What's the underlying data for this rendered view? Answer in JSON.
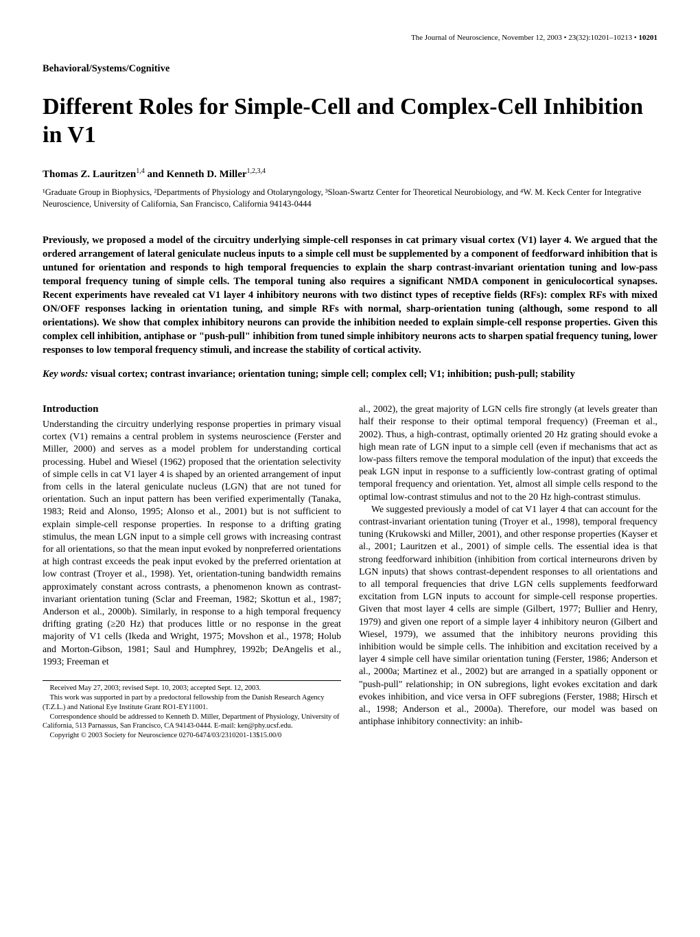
{
  "header": {
    "journal": "The Journal of Neuroscience,",
    "date": "November 12, 2003",
    "volume": "23(32):10201–10213",
    "page": "10201",
    "bullet": "•"
  },
  "section_label": "Behavioral/Systems/Cognitive",
  "title": "Different Roles for Simple-Cell and Complex-Cell Inhibition in V1",
  "authors": "Thomas Z. Lauritzen",
  "authors_sup1": "1,4",
  "authors_and": " and Kenneth D. Miller",
  "authors_sup2": "1,2,3,4",
  "affiliations": "¹Graduate Group in Biophysics, ²Departments of Physiology and Otolaryngology, ³Sloan-Swartz Center for Theoretical Neurobiology, and ⁴W. M. Keck Center for Integrative Neuroscience, University of California, San Francisco, California 94143-0444",
  "abstract": "Previously, we proposed a model of the circuitry underlying simple-cell responses in cat primary visual cortex (V1) layer 4. We argued that the ordered arrangement of lateral geniculate nucleus inputs to a simple cell must be supplemented by a component of feedforward inhibition that is untuned for orientation and responds to high temporal frequencies to explain the sharp contrast-invariant orientation tuning and low-pass temporal frequency tuning of simple cells. The temporal tuning also requires a significant NMDA component in geniculocortical synapses. Recent experiments have revealed cat V1 layer 4 inhibitory neurons with two distinct types of receptive fields (RFs): complex RFs with mixed ON/OFF responses lacking in orientation tuning, and simple RFs with normal, sharp-orientation tuning (although, some respond to all orientations). We show that complex inhibitory neurons can provide the inhibition needed to explain simple-cell response properties. Given this complex cell inhibition, antiphase or \"push-pull\" inhibition from tuned simple inhibitory neurons acts to sharpen spatial frequency tuning, lower responses to low temporal frequency stimuli, and increase the stability of cortical activity.",
  "keywords_label": "Key words:",
  "keywords_content": " visual cortex; contrast invariance; orientation tuning; simple cell; complex cell; V1; inhibition; push-pull; stability",
  "intro_heading": "Introduction",
  "left_col": {
    "p1": "Understanding the circuitry underlying response properties in primary visual cortex (V1) remains a central problem in systems neuroscience (Ferster and Miller, 2000) and serves as a model problem for understanding cortical processing. Hubel and Wiesel (1962) proposed that the orientation selectivity of simple cells in cat V1 layer 4 is shaped by an oriented arrangement of input from cells in the lateral geniculate nucleus (LGN) that are not tuned for orientation. Such an input pattern has been verified experimentally (Tanaka, 1983; Reid and Alonso, 1995; Alonso et al., 2001) but is not sufficient to explain simple-cell response properties. In response to a drifting grating stimulus, the mean LGN input to a simple cell grows with increasing contrast for all orientations, so that the mean input evoked by nonpreferred orientations at high contrast exceeds the peak input evoked by the preferred orientation at low contrast (Troyer et al., 1998). Yet, orientation-tuning bandwidth remains approximately constant across contrasts, a phenomenon known as contrast-invariant orientation tuning (Sclar and Freeman, 1982; Skottun et al., 1987; Anderson et al., 2000b). Similarly, in response to a high temporal frequency drifting grating (≥20 Hz) that produces little or no response in the great majority of V1 cells (Ikeda and Wright, 1975; Movshon et al., 1978; Holub and Morton-Gibson, 1981; Saul and Humphrey, 1992b; DeAngelis et al., 1993; Freeman et"
  },
  "right_col": {
    "p1": "al., 2002), the great majority of LGN cells fire strongly (at levels greater than half their response to their optimal temporal frequency) (Freeman et al., 2002). Thus, a high-contrast, optimally oriented 20 Hz grating should evoke a high mean rate of LGN input to a simple cell (even if mechanisms that act as low-pass filters remove the temporal modulation of the input) that exceeds the peak LGN input in response to a sufficiently low-contrast grating of optimal temporal frequency and orientation. Yet, almost all simple cells respond to the optimal low-contrast stimulus and not to the 20 Hz high-contrast stimulus.",
    "p2": "We suggested previously a model of cat V1 layer 4 that can account for the contrast-invariant orientation tuning (Troyer et al., 1998), temporal frequency tuning (Krukowski and Miller, 2001), and other response properties (Kayser et al., 2001; Lauritzen et al., 2001) of simple cells. The essential idea is that strong feedforward inhibition (inhibition from cortical interneurons driven by LGN inputs) that shows contrast-dependent responses to all orientations and to all temporal frequencies that drive LGN cells supplements feedforward excitation from LGN inputs to account for simple-cell response properties. Given that most layer 4 cells are simple (Gilbert, 1977; Bullier and Henry, 1979) and given one report of a simple layer 4 inhibitory neuron (Gilbert and Wiesel, 1979), we assumed that the inhibitory neurons providing this inhibition would be simple cells. The inhibition and excitation received by a layer 4 simple cell have similar orientation tuning (Ferster, 1986; Anderson et al., 2000a; Martinez et al., 2002) but are arranged in a spatially opponent or \"push-pull\" relationship; in ON subregions, light evokes excitation and dark evokes inhibition, and vice versa in OFF subregions (Ferster, 1988; Hirsch et al., 1998; Anderson et al., 2000a). Therefore, our model was based on antiphase inhibitory connectivity: an inhib-"
  },
  "footnotes": {
    "f1": "Received May 27, 2003; revised Sept. 10, 2003; accepted Sept. 12, 2003.",
    "f2": "This work was supported in part by a predoctoral fellowship from the Danish Research Agency (T.Z.L.) and National Eye Institute Grant RO1-EY11001.",
    "f3": "Correspondence should be addressed to Kenneth D. Miller, Department of Physiology, University of California, 513 Parnassus, San Francisco, CA 94143-0444. E-mail: ken@phy.ucsf.edu.",
    "f4": "Copyright © 2003 Society for Neuroscience    0270-6474/03/2310201-13$15.00/0"
  }
}
